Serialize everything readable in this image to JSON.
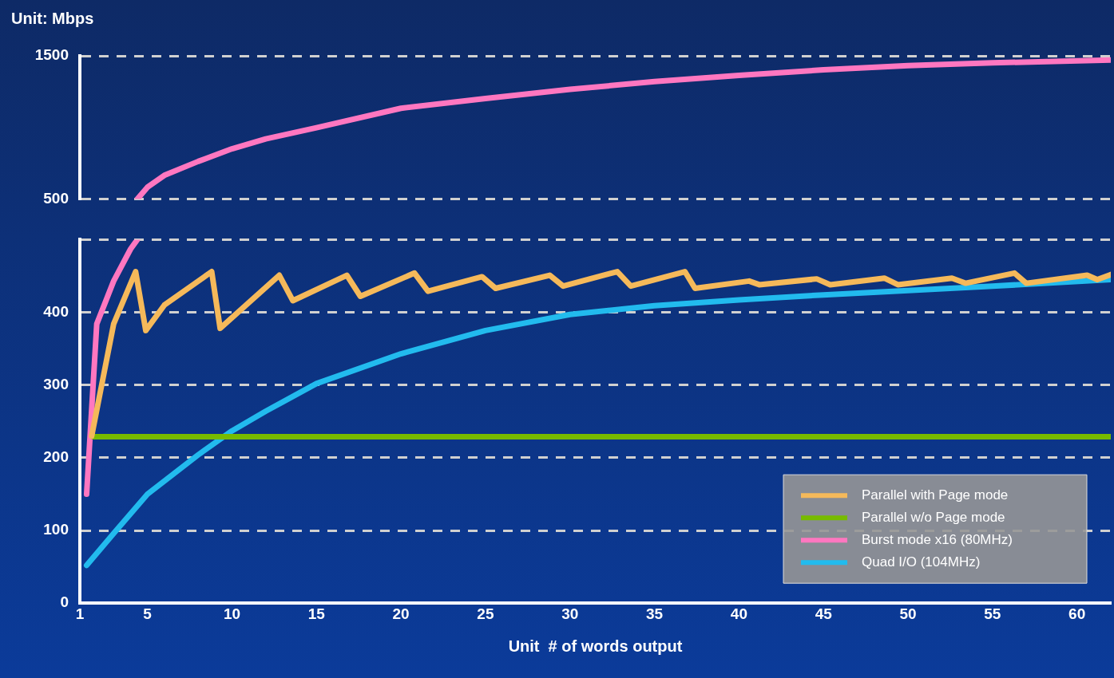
{
  "chart_data": [
    {
      "type": "line",
      "ylabel": "Unit: Mbps",
      "xlim": [
        1,
        62
      ],
      "xticks": [
        1,
        5,
        10,
        15,
        20,
        25,
        30,
        35,
        40,
        45,
        50,
        55,
        60
      ],
      "ylim": [
        500,
        1500
      ],
      "yticks": [
        500,
        1500
      ],
      "grid": "y",
      "tick_labels": "y",
      "marker": "none",
      "line_style": "solid",
      "series": [
        {
          "color": "#ff77c0",
          "x": [
            4.4,
            5,
            6,
            8,
            10,
            12,
            15,
            20,
            25,
            30,
            35,
            40,
            45,
            50,
            55,
            62
          ],
          "values": [
            500,
            583,
            666,
            763,
            851,
            920,
            998,
            1134,
            1202,
            1266,
            1320,
            1363,
            1402,
            1432,
            1451,
            1471
          ]
        }
      ]
    },
    {
      "type": "line",
      "xlabel": "Unit  # of words output",
      "xlim": [
        1,
        62
      ],
      "xticks": [
        1,
        5,
        10,
        15,
        20,
        25,
        30,
        35,
        40,
        45,
        50,
        55,
        60
      ],
      "ylim": [
        0,
        500
      ],
      "yticks": [
        0,
        100,
        200,
        300,
        400,
        {
          "value": 500,
          "label": null
        }
      ],
      "grid": "y",
      "legend": "bottom right",
      "marker": "none",
      "line_style": "solid",
      "series": [
        {
          "name": "Parallel with Page mode",
          "color": "#f5b95a",
          "x": [
            1.7,
            3,
            4.3,
            4.9,
            6,
            8.8,
            9.3,
            12.8,
            13.6,
            16.8,
            17.6,
            20.8,
            21.6,
            24.8,
            25.6,
            28.8,
            29.6,
            32.8,
            33.6,
            36.8,
            37.4,
            40.6,
            41.2,
            44.6,
            45.4,
            48.6,
            49.4,
            52.6,
            53.4,
            56.3,
            57,
            60.6,
            61.2,
            62
          ],
          "values": [
            230,
            384,
            456,
            375,
            410,
            456,
            378,
            451,
            416,
            451,
            422,
            454,
            429,
            449,
            433,
            451,
            436,
            456,
            436,
            456,
            433,
            443,
            438,
            446,
            438,
            447,
            438,
            447,
            440,
            454,
            440,
            451,
            445,
            452
          ]
        },
        {
          "name": "Parallel w/o Page mode",
          "color": "#77bb00",
          "x": [
            1.8,
            62
          ],
          "values": [
            229,
            229
          ]
        },
        {
          "name": "Burst mode x16 (80MHz)",
          "color": "#ff77c0",
          "x": [
            1.4,
            2,
            3,
            4,
            4.4
          ],
          "values": [
            150,
            384,
            443,
            487,
            500
          ]
        },
        {
          "name": "Quad I/O (104MHz)",
          "color": "#22bbee",
          "x": [
            1.4,
            3,
            5,
            8,
            10,
            12,
            15,
            20,
            25,
            30,
            35,
            40,
            45,
            50,
            55,
            62
          ],
          "values": [
            52,
            96,
            150,
            204,
            237,
            264,
            302,
            343,
            375,
            397,
            409,
            417,
            424,
            430,
            436,
            445
          ]
        }
      ]
    }
  ]
}
